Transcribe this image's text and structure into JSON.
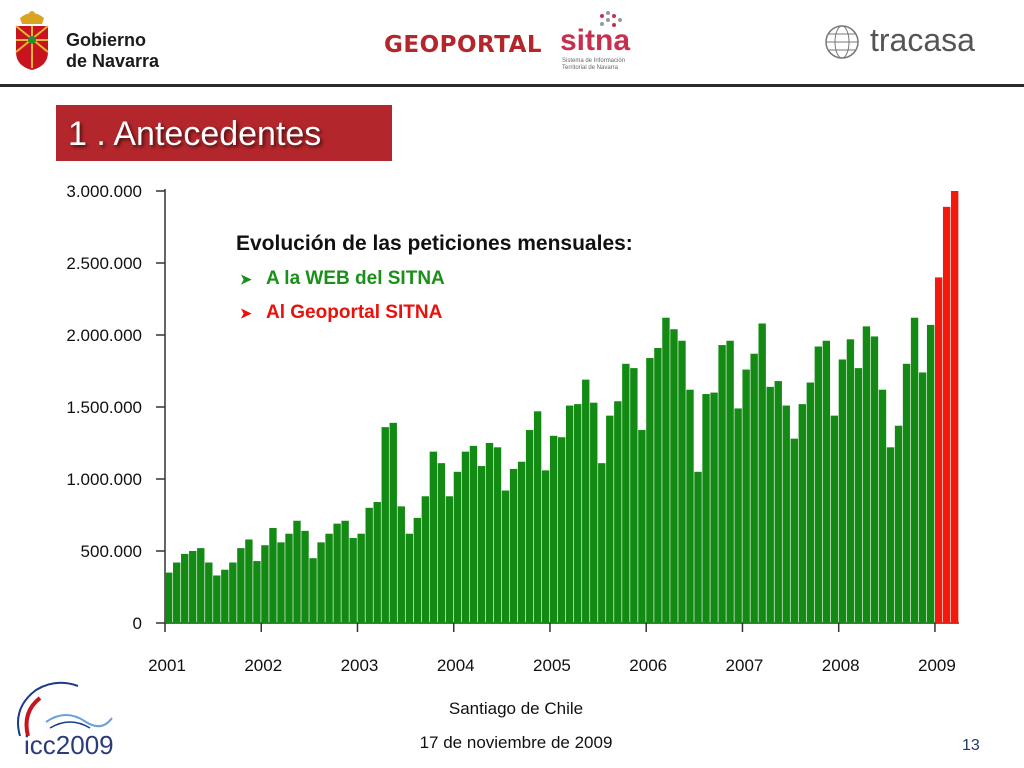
{
  "header": {
    "gobierno_line1": "Gobierno",
    "gobierno_line2": "de Navarra",
    "geoportal": "GEOPORTAL",
    "sitna_word": "sitna",
    "sitna_sub": "Sistema de Información Territorial de Navarra",
    "tracasa": "tracasa"
  },
  "slide_title": "1 . Antecedentes",
  "legend": {
    "title": "Evolución de las peticiones mensuales:",
    "items": [
      "A la WEB del SITNA",
      "Al Geoportal SITNA"
    ]
  },
  "colors": {
    "web": "#138a13",
    "geoportal": "#f21a0d",
    "title_bg": "#b3262b"
  },
  "chart_data": {
    "type": "bar",
    "title": "Evolución de las peticiones mensuales:",
    "xlabel": "",
    "ylabel": "",
    "ylim": [
      0,
      3000000
    ],
    "y_ticks": [
      "0",
      "500.000",
      "1.000.000",
      "1.500.000",
      "2.000.000",
      "2.500.000",
      "3.000.000"
    ],
    "y_tick_values": [
      0,
      500000,
      1000000,
      1500000,
      2000000,
      2500000,
      3000000
    ],
    "x_tick_labels": [
      "2001",
      "2002",
      "2003",
      "2004",
      "2005",
      "2006",
      "2007",
      "2008",
      "2009"
    ],
    "x_tick_months": [
      0,
      12,
      24,
      36,
      48,
      60,
      72,
      84,
      96
    ],
    "series": [
      {
        "name": "A la WEB del SITNA",
        "values": [
          350000,
          420000,
          480000,
          500000,
          520000,
          420000,
          330000,
          370000,
          420000,
          520000,
          580000,
          430000,
          540000,
          660000,
          560000,
          620000,
          710000,
          640000,
          450000,
          560000,
          620000,
          690000,
          710000,
          590000,
          620000,
          800000,
          840000,
          1360000,
          1390000,
          810000,
          620000,
          730000,
          880000,
          1190000,
          1110000,
          880000,
          1050000,
          1190000,
          1230000,
          1090000,
          1250000,
          1220000,
          920000,
          1070000,
          1120000,
          1340000,
          1470000,
          1060000,
          1300000,
          1290000,
          1510000,
          1520000,
          1690000,
          1530000,
          1110000,
          1440000,
          1540000,
          1800000,
          1770000,
          1340000,
          1840000,
          1910000,
          2120000,
          2040000,
          1960000,
          1620000,
          1050000,
          1590000,
          1600000,
          1930000,
          1960000,
          1490000,
          1760000,
          1870000,
          2080000,
          1640000,
          1680000,
          1510000,
          1280000,
          1520000,
          1670000,
          1920000,
          1960000,
          1440000,
          1830000,
          1970000,
          1770000,
          2060000,
          1990000,
          1620000,
          1220000,
          1370000,
          1800000,
          2120000,
          1740000,
          2070000
        ]
      },
      {
        "name": "Al Geoportal SITNA",
        "start_index": 96,
        "values": [
          2400000,
          2890000,
          3000000
        ]
      }
    ]
  },
  "footer": {
    "location": "Santiago de Chile",
    "date": "17 de noviembre de 2009",
    "page": "13",
    "icc": "icc2009"
  }
}
